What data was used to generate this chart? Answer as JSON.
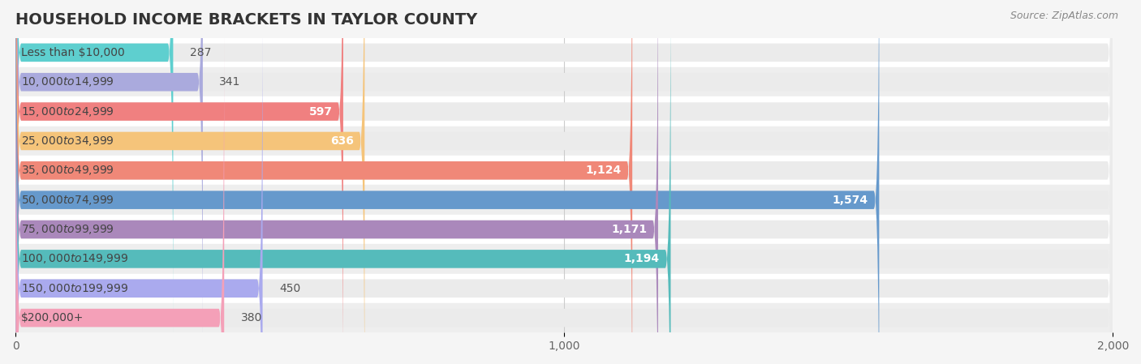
{
  "title": "HOUSEHOLD INCOME BRACKETS IN TAYLOR COUNTY",
  "source": "Source: ZipAtlas.com",
  "categories": [
    "Less than $10,000",
    "$10,000 to $14,999",
    "$15,000 to $24,999",
    "$25,000 to $34,999",
    "$35,000 to $49,999",
    "$50,000 to $74,999",
    "$75,000 to $99,999",
    "$100,000 to $149,999",
    "$150,000 to $199,999",
    "$200,000+"
  ],
  "values": [
    287,
    341,
    597,
    636,
    1124,
    1574,
    1171,
    1194,
    450,
    380
  ],
  "bar_colors": [
    "#5ECFCF",
    "#AAAADD",
    "#F08080",
    "#F5C47A",
    "#F08878",
    "#6699CC",
    "#AA88BB",
    "#55BBBB",
    "#AAAAEE",
    "#F4A0B8"
  ],
  "bar_edge_colors": [
    "#4BBFBF",
    "#9999CC",
    "#E07070",
    "#E5B46A",
    "#E07868",
    "#5589BC",
    "#9A78AB",
    "#45ABAB",
    "#9A9ADE",
    "#E490A8"
  ],
  "xlim": [
    0,
    2000
  ],
  "xticks": [
    0,
    1000,
    2000
  ],
  "xtick_labels": [
    "0",
    "1,000",
    "2,000"
  ],
  "background_color": "#f5f5f5",
  "bar_background_color": "#ebebeb",
  "title_fontsize": 14,
  "label_fontsize": 10,
  "value_fontsize": 10,
  "bar_height": 0.62,
  "value_label_color_inside": "#ffffff",
  "value_label_color_outside": "#555555"
}
